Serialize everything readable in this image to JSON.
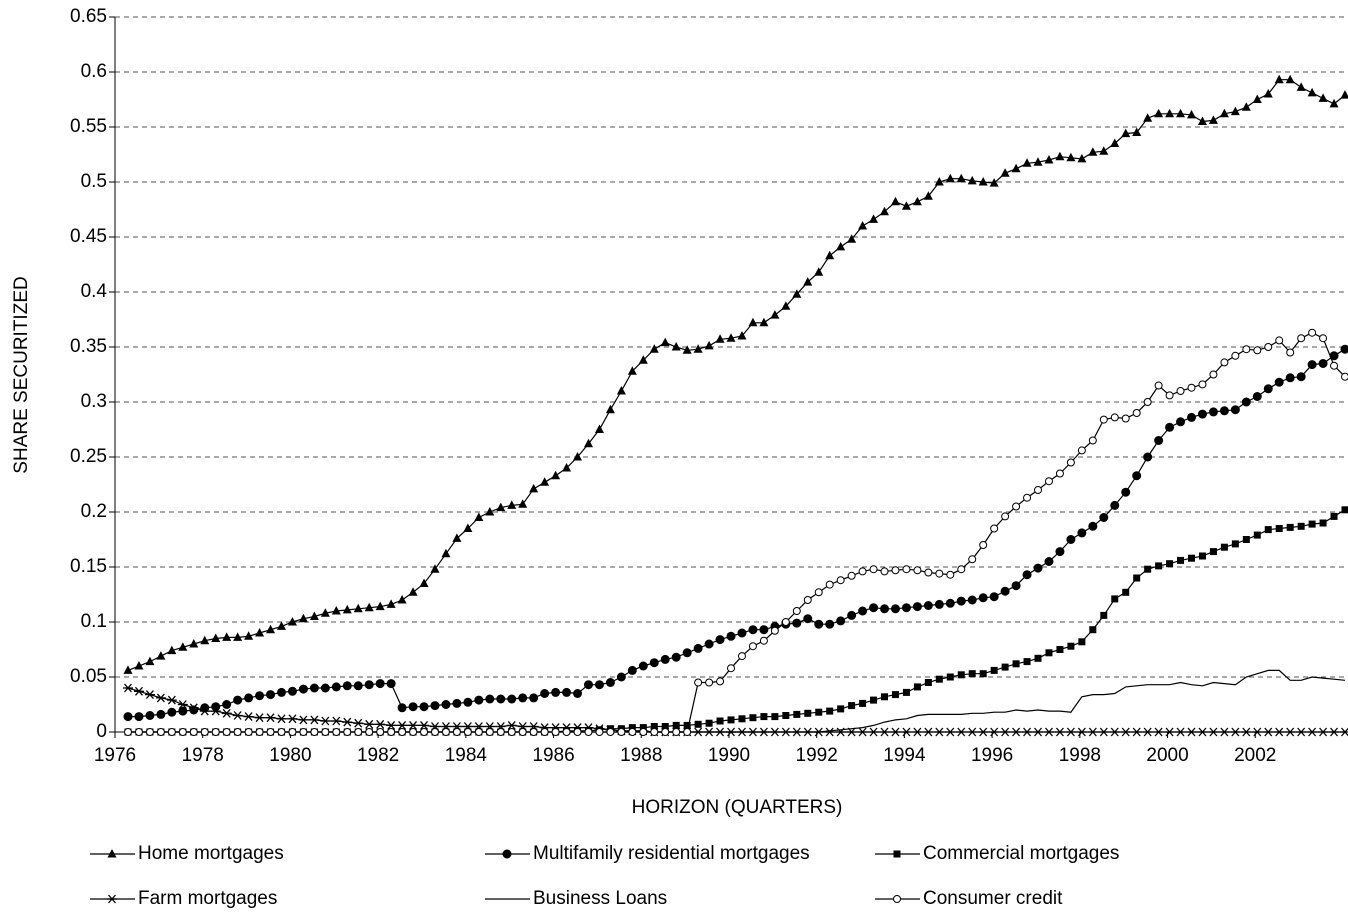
{
  "chart_data": {
    "type": "line",
    "xlabel": "HORIZON (QUARTERS)",
    "ylabel": "SHARE SECURITIZED",
    "categories": [
      "1976",
      null,
      null,
      null,
      null,
      null,
      null,
      null,
      "1978",
      null,
      null,
      null,
      null,
      null,
      null,
      null,
      "1980",
      null,
      null,
      null,
      null,
      null,
      null,
      null,
      "1982",
      null,
      null,
      null,
      null,
      null,
      null,
      null,
      "1984",
      null,
      null,
      null,
      null,
      null,
      null,
      null,
      "1986",
      null,
      null,
      null,
      null,
      null,
      null,
      null,
      "1988",
      null,
      null,
      null,
      null,
      null,
      null,
      null,
      "1990",
      null,
      null,
      null,
      null,
      null,
      null,
      null,
      "1992",
      null,
      null,
      null,
      null,
      null,
      null,
      null,
      "1994",
      null,
      null,
      null,
      null,
      null,
      null,
      null,
      "1996",
      null,
      null,
      null,
      null,
      null,
      null,
      null,
      "1998",
      null,
      null,
      null,
      null,
      null,
      null,
      null,
      "2000",
      null,
      null,
      null,
      null,
      null,
      null,
      null,
      "2002",
      null,
      null,
      null,
      null,
      null,
      null,
      null
    ],
    "ylim": [
      0,
      0.65
    ],
    "yticks": [
      0,
      0.05,
      0.1,
      0.15,
      0.2,
      0.25,
      0.3,
      0.35,
      0.4,
      0.45,
      0.5,
      0.55,
      0.6,
      0.65
    ],
    "grid": true,
    "legend": "bottom",
    "series": [
      {
        "name": "Home mortgages",
        "color": "#000000",
        "marker": "triangle",
        "values": [
          0.056,
          0.06,
          0.064,
          0.069,
          0.074,
          0.077,
          0.08,
          0.083,
          0.085,
          0.086,
          0.086,
          0.087,
          0.09,
          0.093,
          0.096,
          0.1,
          0.103,
          0.105,
          0.108,
          0.11,
          0.111,
          0.112,
          0.113,
          0.114,
          0.116,
          0.12,
          0.127,
          0.135,
          0.148,
          0.162,
          0.176,
          0.185,
          0.195,
          0.2,
          0.204,
          0.206,
          0.207,
          0.221,
          0.227,
          0.233,
          0.24,
          0.25,
          0.262,
          0.275,
          0.293,
          0.31,
          0.328,
          0.338,
          0.348,
          0.354,
          0.35,
          0.347,
          0.348,
          0.351,
          0.357,
          0.358,
          0.36,
          0.372,
          0.372,
          0.379,
          0.387,
          0.398,
          0.409,
          0.418,
          0.433,
          0.441,
          0.448,
          0.46,
          0.466,
          0.473,
          0.482,
          0.478,
          0.482,
          0.487,
          0.5,
          0.503,
          0.503,
          0.501,
          0.5,
          0.499,
          0.508,
          0.512,
          0.517,
          0.518,
          0.52,
          0.523,
          0.522,
          0.521,
          0.527,
          0.528,
          0.535,
          0.544,
          0.545,
          0.558,
          0.562,
          0.562,
          0.562,
          0.561,
          0.555,
          0.556,
          0.562,
          0.564,
          0.568,
          0.575,
          0.58,
          0.593,
          0.593,
          0.586,
          0.581,
          0.576,
          0.571,
          0.579
        ]
      },
      {
        "name": "Multifamily residential mortgages",
        "color": "#000000",
        "marker": "circle",
        "values": [
          0.014,
          0.014,
          0.015,
          0.016,
          0.018,
          0.019,
          0.02,
          0.022,
          0.023,
          0.025,
          0.029,
          0.031,
          0.033,
          0.034,
          0.036,
          0.037,
          0.039,
          0.04,
          0.04,
          0.041,
          0.042,
          0.042,
          0.043,
          0.044,
          0.044,
          0.022,
          0.023,
          0.023,
          0.024,
          0.025,
          0.026,
          0.027,
          0.029,
          0.03,
          0.03,
          0.03,
          0.031,
          0.031,
          0.035,
          0.036,
          0.036,
          0.035,
          0.043,
          0.043,
          0.045,
          0.05,
          0.056,
          0.06,
          0.063,
          0.066,
          0.068,
          0.072,
          0.076,
          0.08,
          0.084,
          0.087,
          0.09,
          0.093,
          0.093,
          0.096,
          0.098,
          0.099,
          0.103,
          0.098,
          0.098,
          0.101,
          0.106,
          0.11,
          0.113,
          0.112,
          0.112,
          0.113,
          0.114,
          0.115,
          0.116,
          0.117,
          0.119,
          0.12,
          0.122,
          0.123,
          0.128,
          0.133,
          0.143,
          0.149,
          0.155,
          0.164,
          0.175,
          0.181,
          0.187,
          0.195,
          0.206,
          0.218,
          0.233,
          0.25,
          0.265,
          0.277,
          0.282,
          0.286,
          0.289,
          0.291,
          0.292,
          0.293,
          0.3,
          0.305,
          0.312,
          0.318,
          0.322,
          0.323,
          0.334,
          0.335,
          0.342,
          0.348
        ]
      },
      {
        "name": "Commercial mortgages",
        "color": "#000000",
        "marker": "square",
        "values": [
          0,
          0,
          0,
          0,
          0,
          0,
          0,
          0,
          0,
          0,
          0,
          0,
          0,
          0,
          0,
          0,
          0,
          0,
          0,
          0,
          0,
          0,
          0,
          0,
          0,
          0,
          0,
          0,
          0,
          0,
          0,
          0,
          0,
          0,
          0,
          0,
          0,
          0,
          0,
          0,
          0.001,
          0.001,
          0.001,
          0.002,
          0.003,
          0.003,
          0.004,
          0.004,
          0.005,
          0.005,
          0.006,
          0.006,
          0.007,
          0.008,
          0.01,
          0.011,
          0.012,
          0.013,
          0.014,
          0.014,
          0.015,
          0.016,
          0.017,
          0.018,
          0.019,
          0.021,
          0.024,
          0.026,
          0.029,
          0.032,
          0.034,
          0.036,
          0.041,
          0.045,
          0.048,
          0.05,
          0.052,
          0.053,
          0.053,
          0.056,
          0.059,
          0.062,
          0.064,
          0.067,
          0.072,
          0.075,
          0.078,
          0.082,
          0.093,
          0.106,
          0.121,
          0.127,
          0.14,
          0.148,
          0.151,
          0.153,
          0.156,
          0.158,
          0.16,
          0.164,
          0.168,
          0.171,
          0.175,
          0.179,
          0.184,
          0.185,
          0.186,
          0.187,
          0.189,
          0.19,
          0.196,
          0.202
        ]
      },
      {
        "name": "Farm mortgages",
        "color": "#000000",
        "marker": "asterisk",
        "values": [
          0.04,
          0.037,
          0.034,
          0.031,
          0.029,
          0.025,
          0.022,
          0.019,
          0.019,
          0.017,
          0.015,
          0.014,
          0.013,
          0.013,
          0.012,
          0.012,
          0.011,
          0.011,
          0.01,
          0.01,
          0.009,
          0.008,
          0.007,
          0.007,
          0.006,
          0.006,
          0.006,
          0.006,
          0.005,
          0.005,
          0.005,
          0.005,
          0.005,
          0.005,
          0.005,
          0.006,
          0.005,
          0.005,
          0.004,
          0.004,
          0.004,
          0.004,
          0.004,
          0.003,
          0.002,
          0.001,
          0.001,
          0.001,
          0,
          0,
          0,
          0,
          0,
          0,
          0,
          0,
          0,
          0,
          0,
          0,
          0,
          0,
          0,
          0,
          0,
          0,
          0,
          0,
          0,
          0,
          0,
          0,
          0,
          0,
          0,
          0,
          0,
          0,
          0,
          0,
          0,
          0,
          0,
          0,
          0,
          0,
          0,
          0,
          0,
          0,
          0,
          0,
          0,
          0,
          0,
          0,
          0,
          0,
          0,
          0,
          0,
          0,
          0,
          0,
          0,
          0,
          0,
          0,
          0,
          0,
          0,
          0
        ]
      },
      {
        "name": "Business Loans",
        "color": "#000000",
        "marker": "none",
        "values": [
          0,
          0,
          0,
          0,
          0,
          0,
          0,
          0,
          0,
          0,
          0,
          0,
          0,
          0,
          0,
          0,
          0,
          0,
          0,
          0,
          0,
          0,
          0,
          0,
          0,
          0,
          0,
          0,
          0,
          0,
          0,
          0,
          0,
          0,
          0,
          0,
          0,
          0,
          0,
          0,
          0,
          0,
          0,
          0,
          0,
          0,
          0,
          0,
          0,
          0,
          0,
          0,
          0,
          0,
          0,
          0,
          0,
          0,
          0,
          0,
          0,
          0,
          0,
          0,
          0.001,
          0.002,
          0.003,
          0.004,
          0.006,
          0.009,
          0.011,
          0.012,
          0.015,
          0.016,
          0.016,
          0.016,
          0.016,
          0.017,
          0.017,
          0.018,
          0.018,
          0.02,
          0.019,
          0.02,
          0.019,
          0.019,
          0.018,
          0.032,
          0.034,
          0.034,
          0.035,
          0.041,
          0.042,
          0.043,
          0.043,
          0.043,
          0.045,
          0.043,
          0.042,
          0.045,
          0.044,
          0.043,
          0.05,
          0.053,
          0.056,
          0.056,
          0.047,
          0.047,
          0.05,
          0.049,
          0.048,
          0.047
        ]
      },
      {
        "name": "Consumer credit",
        "color": "#000000",
        "marker": "open-circle",
        "values": [
          0,
          0,
          0,
          0,
          0,
          0,
          0,
          0,
          0,
          0,
          0,
          0,
          0,
          0,
          0,
          0,
          0,
          0,
          0,
          0,
          0,
          0,
          0,
          0,
          0,
          0,
          0,
          0,
          0,
          0,
          0,
          0,
          0,
          0,
          0,
          0,
          0,
          0,
          0,
          0,
          0,
          0,
          0,
          0,
          0,
          0,
          0,
          0,
          0,
          0,
          0,
          0,
          0.045,
          0.045,
          0.046,
          0.058,
          0.069,
          0.078,
          0.083,
          0.092,
          0.1,
          0.11,
          0.12,
          0.127,
          0.134,
          0.138,
          0.142,
          0.146,
          0.148,
          0.146,
          0.147,
          0.148,
          0.147,
          0.145,
          0.144,
          0.143,
          0.148,
          0.157,
          0.17,
          0.185,
          0.196,
          0.205,
          0.213,
          0.22,
          0.228,
          0.235,
          0.245,
          0.256,
          0.265,
          0.284,
          0.286,
          0.285,
          0.29,
          0.3,
          0.315,
          0.306,
          0.31,
          0.313,
          0.316,
          0.325,
          0.336,
          0.342,
          0.348,
          0.347,
          0.35,
          0.356,
          0.345,
          0.358,
          0.363,
          0.358,
          0.333,
          0.323
        ]
      }
    ]
  }
}
